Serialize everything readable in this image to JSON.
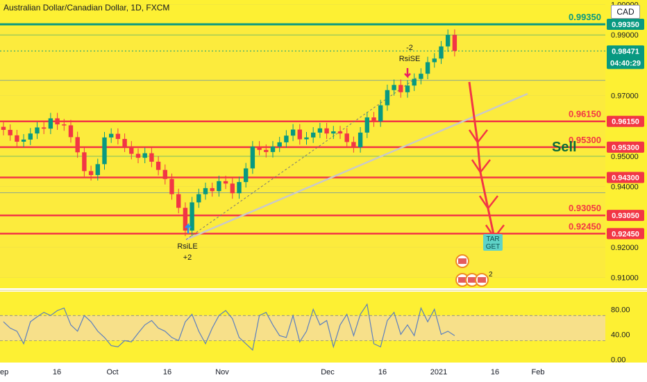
{
  "header": {
    "title": "Australian Dollar/Canadian Dollar, 1D, FXCM",
    "currency": "CAD"
  },
  "colors": {
    "background": "#fdf033",
    "up": "#089981",
    "down": "#f23645",
    "level_line": "#f23645",
    "top_level": "#089981",
    "annotation_red": "#f23645",
    "osc_line": "#5b7fbf",
    "osc_band": "#f5dca0"
  },
  "chart_data": [
    {
      "type": "line",
      "title": "Australian Dollar/Canadian Dollar, 1D, FXCM",
      "x_labels": [
        "ep",
        "16",
        "Oct",
        "16",
        "Nov",
        "Dec",
        "16",
        "2021",
        "16",
        "Feb"
      ],
      "y_ticks": [
        "1.00000",
        "0.99000",
        "0.97000",
        "0.95000",
        "0.94000",
        "0.92000",
        "0.91000"
      ],
      "ylim": [
        0.9065,
        1.0015
      ],
      "grid": true,
      "series": [
        {
          "values": [
            0.9587,
            0.9569,
            0.9548,
            0.9555,
            0.9575,
            0.9595,
            0.9591,
            0.9625,
            0.9605,
            0.9602,
            0.9563,
            0.9513,
            0.9451,
            0.9438,
            0.9474,
            0.9562,
            0.9574,
            0.9557,
            0.9532,
            0.9508,
            0.9495,
            0.951,
            0.9482,
            0.9455,
            0.9425,
            0.9375,
            0.933,
            0.9255,
            0.9348,
            0.9375,
            0.9395,
            0.9385,
            0.9418,
            0.941,
            0.9378,
            0.9415,
            0.946,
            0.9532,
            0.9521,
            0.9514,
            0.9532,
            0.9546,
            0.9568,
            0.9588,
            0.9556,
            0.9562,
            0.9578,
            0.9592,
            0.9575,
            0.9582,
            0.9575,
            0.9547,
            0.953,
            0.9578,
            0.9628,
            0.9615,
            0.9668,
            0.9718,
            0.9735,
            0.9711,
            0.9733,
            0.9755,
            0.9772,
            0.981,
            0.9822,
            0.9862,
            0.99,
            0.9847
          ]
        }
      ],
      "levels": [
        {
          "label": "0.99350",
          "value": 0.9935,
          "tag": "0.99350"
        },
        {
          "label": "0.96150",
          "value": 0.9615,
          "tag": "0.96150"
        },
        {
          "label": "0.95300",
          "value": 0.953,
          "tag": "0.95300"
        },
        {
          "label": "",
          "value": 0.943,
          "tag": "0.94300"
        },
        {
          "label": "0.93050",
          "value": 0.9305,
          "tag": "0.93050"
        },
        {
          "label": "0.92450",
          "value": 0.9245,
          "tag": "0.92450"
        }
      ],
      "last_price": {
        "value": "0.98471",
        "countdown": "04:40:29"
      },
      "annotations": {
        "sell": "Sell",
        "target": [
          "TAR",
          "GET"
        ],
        "rsi_top": [
          "-2",
          "RsiSE"
        ],
        "rsi_bottom": [
          "RsiLE",
          "+2"
        ],
        "event_count": "2"
      }
    },
    {
      "type": "line",
      "title": "",
      "y_ticks": [
        "80.00",
        "40.00",
        "0.00"
      ],
      "ylim": [
        -5,
        108
      ],
      "band": [
        30,
        70
      ],
      "series": [
        {
          "values": [
            60,
            50,
            45,
            25,
            60,
            68,
            75,
            70,
            78,
            82,
            55,
            45,
            70,
            60,
            45,
            35,
            22,
            20,
            30,
            28,
            42,
            55,
            62,
            50,
            45,
            35,
            30,
            60,
            72,
            45,
            25,
            50,
            70,
            78,
            65,
            35,
            25,
            15,
            70,
            75,
            55,
            38,
            35,
            70,
            28,
            45,
            80,
            55,
            62,
            20,
            55,
            72,
            38,
            72,
            88,
            25,
            20,
            62,
            75,
            40,
            55,
            38,
            82,
            60,
            80,
            40,
            45,
            38
          ]
        }
      ]
    }
  ]
}
